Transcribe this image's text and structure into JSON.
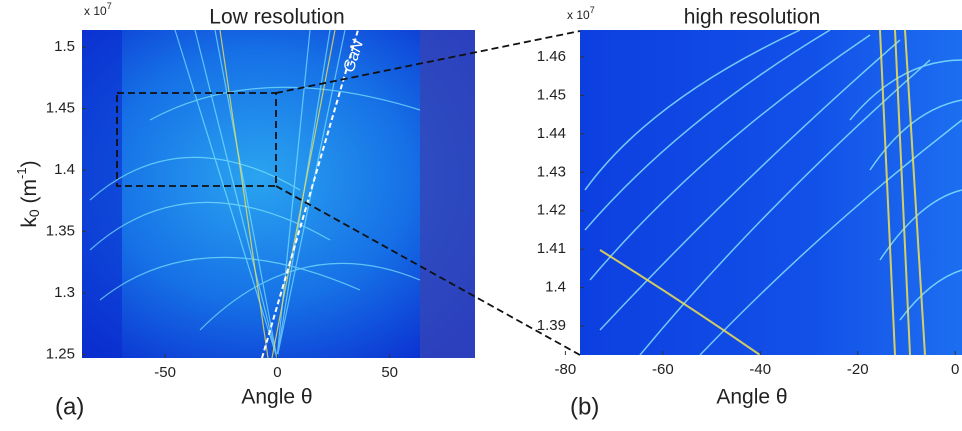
{
  "chart_data": [
    {
      "type": "heatmap",
      "title": "Low resolution",
      "xlabel": "Angle θ",
      "ylabel": {
        "base": "k",
        "sub": "0",
        "open": " (m",
        "sup": "-1",
        "close": ")"
      },
      "multiplier": {
        "base": "x 10",
        "exp": "7"
      },
      "annotations": [
        "GaN",
        "(a)"
      ],
      "xlim": [
        -87,
        88
      ],
      "xticks": [
        -50,
        0,
        50
      ],
      "ylim": [
        1.247,
        1.514
      ],
      "yticks": [
        1.25,
        1.3,
        1.35,
        1.4,
        1.45,
        1.5
      ]
    },
    {
      "type": "heatmap",
      "title": "high resolution",
      "xlabel": "Angle θ",
      "multiplier": {
        "base": "x 10",
        "exp": "7"
      },
      "annotations": [
        "(b)"
      ],
      "xlim": [
        -77,
        1.4
      ],
      "xticks": [
        -80,
        -60,
        -40,
        -20,
        0
      ],
      "ylim": [
        1.3825,
        1.467
      ],
      "yticks": [
        1.39,
        1.4,
        1.41,
        1.42,
        1.43,
        1.44,
        1.45,
        1.46
      ]
    }
  ]
}
